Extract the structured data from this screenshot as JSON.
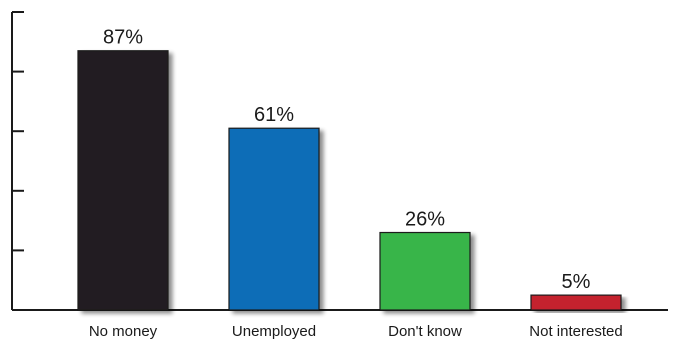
{
  "chart_data": {
    "type": "bar",
    "title": "",
    "xlabel": "",
    "ylabel": "",
    "ylim": [
      0,
      100
    ],
    "grid": false,
    "legend": "none",
    "categories": [
      "No money",
      "Unemployed",
      "Don't know",
      "Not interested"
    ],
    "values": [
      87,
      61,
      26,
      5
    ],
    "data_labels": [
      "87%",
      "61%",
      "26%",
      "5%"
    ],
    "colors": [
      "#231f20",
      "#0e6db7",
      "#39b54a",
      "#c4202f"
    ],
    "y_ticks": [
      0,
      20,
      40,
      60,
      80,
      100
    ]
  }
}
